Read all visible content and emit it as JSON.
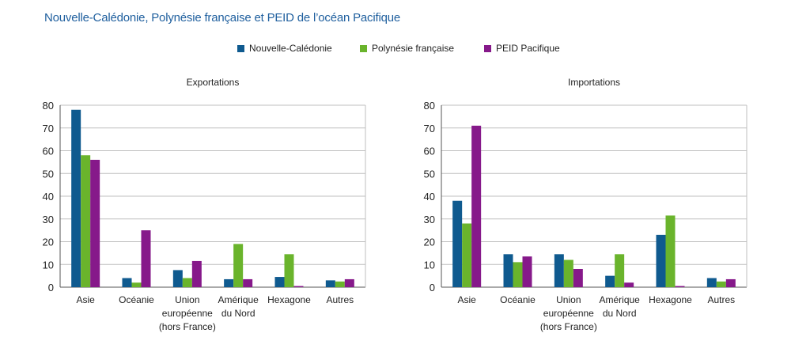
{
  "title": "Nouvelle-Calédonie, Polynésie française et PEID de l’océan Pacifique",
  "colors": {
    "nouvelle_caledonie": "#0f5a8f",
    "polynesie": "#6ab42c",
    "peid": "#86198a",
    "grid": "#bfbfbf",
    "axis": "#555555"
  },
  "legend": [
    {
      "label": "Nouvelle-Calédonie",
      "color": "#0f5a8f"
    },
    {
      "label": "Polynésie française",
      "color": "#6ab42c"
    },
    {
      "label": "PEID Pacifique",
      "color": "#86198a"
    }
  ],
  "chart_data": [
    {
      "type": "bar",
      "title": "Exportations",
      "xlabel": "",
      "ylabel": "",
      "ylim": [
        0,
        80
      ],
      "yticks": [
        0,
        10,
        20,
        30,
        40,
        50,
        60,
        70,
        80
      ],
      "grid": true,
      "categories": [
        [
          "Asie"
        ],
        [
          "Océanie"
        ],
        [
          "Union",
          "européenne",
          "(hors France)"
        ],
        [
          "Amérique",
          "du Nord"
        ],
        [
          "Hexagone"
        ],
        [
          "Autres"
        ]
      ],
      "series": [
        {
          "name": "Nouvelle-Calédonie",
          "color": "#0f5a8f",
          "values": [
            78,
            4,
            7.5,
            3.5,
            4.5,
            3
          ]
        },
        {
          "name": "Polynésie française",
          "color": "#6ab42c",
          "values": [
            58,
            2,
            4,
            19,
            14.5,
            2.5
          ]
        },
        {
          "name": "PEID Pacifique",
          "color": "#86198a",
          "values": [
            56,
            25,
            11.5,
            3.5,
            0.5,
            3.5
          ]
        }
      ]
    },
    {
      "type": "bar",
      "title": "Importations",
      "xlabel": "",
      "ylabel": "",
      "ylim": [
        0,
        80
      ],
      "yticks": [
        0,
        10,
        20,
        30,
        40,
        50,
        60,
        70,
        80
      ],
      "grid": true,
      "categories": [
        [
          "Asie"
        ],
        [
          "Océanie"
        ],
        [
          "Union",
          "européenne",
          "(hors France)"
        ],
        [
          "Amérique",
          "du Nord"
        ],
        [
          "Hexagone"
        ],
        [
          "Autres"
        ]
      ],
      "series": [
        {
          "name": "Nouvelle-Calédonie",
          "color": "#0f5a8f",
          "values": [
            38,
            14.5,
            14.5,
            5,
            23,
            4
          ]
        },
        {
          "name": "Polynésie française",
          "color": "#6ab42c",
          "values": [
            28,
            11,
            12,
            14.5,
            31.5,
            2.5
          ]
        },
        {
          "name": "PEID Pacifique",
          "color": "#86198a",
          "values": [
            71,
            13.5,
            8,
            2,
            0.5,
            3.5
          ]
        }
      ]
    }
  ]
}
